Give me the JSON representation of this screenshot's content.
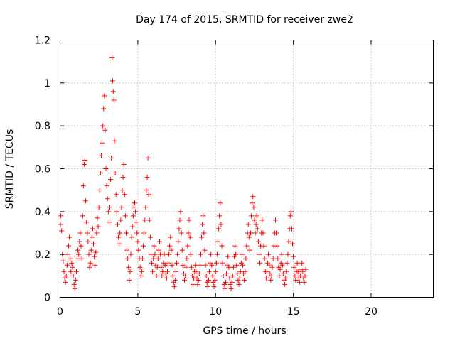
{
  "chart_data": {
    "type": "scatter",
    "title": "Day 174 of 2015, SRMTID for receiver zwe2",
    "xlabel": "GPS time / hours",
    "ylabel": "SRMTID / TECUs",
    "xlim": [
      0,
      24
    ],
    "ylim": [
      0,
      1.2
    ],
    "xticks": [
      "0",
      "5",
      "10",
      "15",
      "20"
    ],
    "yticks": [
      "0",
      "0.2",
      "0.4",
      "0.6",
      "0.8",
      "1",
      "1.2"
    ],
    "grid": true,
    "marker": "+",
    "series": [
      {
        "name": "SRMTID",
        "color": "#ff0000",
        "points": [
          [
            0.02,
            0.34
          ],
          [
            0.05,
            0.38
          ],
          [
            0.1,
            0.31
          ],
          [
            0.15,
            0.2
          ],
          [
            0.2,
            0.17
          ],
          [
            0.25,
            0.12
          ],
          [
            0.3,
            0.09
          ],
          [
            0.35,
            0.07
          ],
          [
            0.4,
            0.1
          ],
          [
            0.45,
            0.15
          ],
          [
            0.5,
            0.2
          ],
          [
            0.55,
            0.24
          ],
          [
            0.6,
            0.28
          ],
          [
            0.65,
            0.18
          ],
          [
            0.7,
            0.12
          ],
          [
            0.75,
            0.16
          ],
          [
            0.8,
            0.14
          ],
          [
            0.85,
            0.1
          ],
          [
            0.9,
            0.06
          ],
          [
            0.95,
            0.04
          ],
          [
            1.0,
            0.08
          ],
          [
            1.05,
            0.12
          ],
          [
            1.1,
            0.18
          ],
          [
            1.15,
            0.22
          ],
          [
            1.2,
            0.2
          ],
          [
            1.25,
            0.26
          ],
          [
            1.3,
            0.3
          ],
          [
            1.35,
            0.24
          ],
          [
            1.4,
            0.18
          ],
          [
            1.45,
            0.38
          ],
          [
            1.5,
            0.52
          ],
          [
            1.55,
            0.62
          ],
          [
            1.6,
            0.64
          ],
          [
            1.65,
            0.45
          ],
          [
            1.7,
            0.35
          ],
          [
            1.75,
            0.3
          ],
          [
            1.8,
            0.26
          ],
          [
            1.85,
            0.2
          ],
          [
            1.9,
            0.14
          ],
          [
            1.95,
            0.16
          ],
          [
            2.0,
            0.22
          ],
          [
            2.05,
            0.28
          ],
          [
            2.1,
            0.32
          ],
          [
            2.15,
            0.25
          ],
          [
            2.2,
            0.19
          ],
          [
            2.25,
            0.15
          ],
          [
            2.3,
            0.21
          ],
          [
            2.35,
            0.3
          ],
          [
            2.4,
            0.37
          ],
          [
            2.45,
            0.33
          ],
          [
            2.5,
            0.42
          ],
          [
            2.55,
            0.5
          ],
          [
            2.6,
            0.58
          ],
          [
            2.65,
            0.66
          ],
          [
            2.7,
            0.72
          ],
          [
            2.75,
            0.8
          ],
          [
            2.8,
            0.88
          ],
          [
            2.85,
            0.94
          ],
          [
            2.9,
            0.78
          ],
          [
            2.95,
            0.6
          ],
          [
            3.0,
            0.52
          ],
          [
            3.05,
            0.46
          ],
          [
            3.1,
            0.4
          ],
          [
            3.15,
            0.35
          ],
          [
            3.2,
            0.42
          ],
          [
            3.25,
            0.55
          ],
          [
            3.3,
            0.65
          ],
          [
            3.35,
            1.12
          ],
          [
            3.38,
            1.01
          ],
          [
            3.42,
            0.96
          ],
          [
            3.46,
            0.92
          ],
          [
            3.5,
            0.73
          ],
          [
            3.55,
            0.58
          ],
          [
            3.6,
            0.48
          ],
          [
            3.65,
            0.4
          ],
          [
            3.7,
            0.34
          ],
          [
            3.75,
            0.28
          ],
          [
            3.8,
            0.25
          ],
          [
            3.85,
            0.3
          ],
          [
            3.9,
            0.36
          ],
          [
            3.95,
            0.42
          ],
          [
            4.0,
            0.5
          ],
          [
            4.05,
            0.56
          ],
          [
            4.1,
            0.62
          ],
          [
            4.15,
            0.48
          ],
          [
            4.2,
            0.38
          ],
          [
            4.25,
            0.3
          ],
          [
            4.3,
            0.22
          ],
          [
            4.35,
            0.18
          ],
          [
            4.4,
            0.14
          ],
          [
            4.45,
            0.08
          ],
          [
            4.5,
            0.12
          ],
          [
            4.55,
            0.2
          ],
          [
            4.6,
            0.28
          ],
          [
            4.65,
            0.33
          ],
          [
            4.7,
            0.38
          ],
          [
            4.75,
            0.42
          ],
          [
            4.8,
            0.44
          ],
          [
            4.85,
            0.4
          ],
          [
            4.9,
            0.35
          ],
          [
            4.95,
            0.3
          ],
          [
            5.0,
            0.26
          ],
          [
            5.05,
            0.22
          ],
          [
            5.1,
            0.18
          ],
          [
            5.15,
            0.14
          ],
          [
            5.2,
            0.1
          ],
          [
            5.25,
            0.12
          ],
          [
            5.3,
            0.18
          ],
          [
            5.35,
            0.24
          ],
          [
            5.4,
            0.3
          ],
          [
            5.45,
            0.36
          ],
          [
            5.5,
            0.42
          ],
          [
            5.55,
            0.5
          ],
          [
            5.6,
            0.56
          ],
          [
            5.65,
            0.65
          ],
          [
            5.7,
            0.48
          ],
          [
            5.75,
            0.36
          ],
          [
            5.8,
            0.28
          ],
          [
            5.85,
            0.2
          ],
          [
            5.9,
            0.16
          ],
          [
            5.95,
            0.12
          ],
          [
            6.0,
            0.18
          ],
          [
            6.05,
            0.24
          ],
          [
            6.1,
            0.2
          ],
          [
            6.15,
            0.15
          ],
          [
            6.2,
            0.1
          ],
          [
            6.25,
            0.14
          ],
          [
            6.3,
            0.18
          ],
          [
            6.35,
            0.22
          ],
          [
            6.4,
            0.26
          ],
          [
            6.45,
            0.2
          ],
          [
            6.5,
            0.14
          ],
          [
            6.55,
            0.1
          ],
          [
            6.6,
            0.12
          ],
          [
            6.65,
            0.16
          ],
          [
            6.7,
            0.2
          ],
          [
            6.75,
            0.15
          ],
          [
            6.8,
            0.11
          ],
          [
            6.85,
            0.09
          ],
          [
            6.9,
            0.12
          ],
          [
            6.95,
            0.16
          ],
          [
            7.0,
            0.2
          ],
          [
            7.05,
            0.24
          ],
          [
            7.1,
            0.28
          ],
          [
            7.15,
            0.22
          ],
          [
            7.2,
            0.15
          ],
          [
            7.25,
            0.1
          ],
          [
            7.3,
            0.07
          ],
          [
            7.35,
            0.05
          ],
          [
            7.4,
            0.08
          ],
          [
            7.45,
            0.12
          ],
          [
            7.5,
            0.16
          ],
          [
            7.55,
            0.2
          ],
          [
            7.6,
            0.26
          ],
          [
            7.65,
            0.32
          ],
          [
            7.7,
            0.36
          ],
          [
            7.75,
            0.4
          ],
          [
            7.8,
            0.3
          ],
          [
            7.85,
            0.22
          ],
          [
            7.9,
            0.15
          ],
          [
            7.95,
            0.11
          ],
          [
            8.0,
            0.08
          ],
          [
            8.05,
            0.1
          ],
          [
            8.1,
            0.14
          ],
          [
            8.15,
            0.18
          ],
          [
            8.2,
            0.24
          ],
          [
            8.25,
            0.3
          ],
          [
            8.3,
            0.36
          ],
          [
            8.35,
            0.28
          ],
          [
            8.4,
            0.2
          ],
          [
            8.45,
            0.14
          ],
          [
            8.5,
            0.1
          ],
          [
            8.55,
            0.06
          ],
          [
            8.6,
            0.09
          ],
          [
            8.65,
            0.12
          ],
          [
            8.7,
            0.15
          ],
          [
            8.75,
            0.12
          ],
          [
            8.8,
            0.09
          ],
          [
            8.85,
            0.06
          ],
          [
            8.9,
            0.08
          ],
          [
            8.95,
            0.11
          ],
          [
            9.0,
            0.15
          ],
          [
            9.05,
            0.2
          ],
          [
            9.1,
            0.28
          ],
          [
            9.15,
            0.34
          ],
          [
            9.2,
            0.38
          ],
          [
            9.25,
            0.3
          ],
          [
            9.3,
            0.22
          ],
          [
            9.35,
            0.15
          ],
          [
            9.4,
            0.1
          ],
          [
            9.45,
            0.07
          ],
          [
            9.5,
            0.05
          ],
          [
            9.55,
            0.08
          ],
          [
            9.6,
            0.12
          ],
          [
            9.65,
            0.16
          ],
          [
            9.7,
            0.2
          ],
          [
            9.75,
            0.15
          ],
          [
            9.8,
            0.1
          ],
          [
            9.85,
            0.07
          ],
          [
            9.9,
            0.05
          ],
          [
            9.95,
            0.08
          ],
          [
            10.0,
            0.12
          ],
          [
            10.05,
            0.16
          ],
          [
            10.1,
            0.2
          ],
          [
            10.15,
            0.26
          ],
          [
            10.2,
            0.32
          ],
          [
            10.25,
            0.38
          ],
          [
            10.3,
            0.44
          ],
          [
            10.35,
            0.34
          ],
          [
            10.4,
            0.24
          ],
          [
            10.45,
            0.16
          ],
          [
            10.5,
            0.1
          ],
          [
            10.55,
            0.06
          ],
          [
            10.6,
            0.04
          ],
          [
            10.65,
            0.07
          ],
          [
            10.7,
            0.11
          ],
          [
            10.75,
            0.15
          ],
          [
            10.8,
            0.19
          ],
          [
            10.85,
            0.14
          ],
          [
            10.9,
            0.09
          ],
          [
            10.95,
            0.06
          ],
          [
            11.0,
            0.04
          ],
          [
            11.05,
            0.07
          ],
          [
            11.1,
            0.1
          ],
          [
            11.15,
            0.14
          ],
          [
            11.2,
            0.19
          ],
          [
            11.25,
            0.24
          ],
          [
            11.3,
            0.2
          ],
          [
            11.35,
            0.15
          ],
          [
            11.4,
            0.11
          ],
          [
            11.45,
            0.08
          ],
          [
            11.5,
            0.06
          ],
          [
            11.55,
            0.09
          ],
          [
            11.6,
            0.12
          ],
          [
            11.65,
            0.16
          ],
          [
            11.7,
            0.2
          ],
          [
            11.75,
            0.15
          ],
          [
            11.8,
            0.11
          ],
          [
            11.85,
            0.08
          ],
          [
            11.9,
            0.12
          ],
          [
            11.95,
            0.18
          ],
          [
            12.0,
            0.24
          ],
          [
            12.05,
            0.3
          ],
          [
            12.1,
            0.34
          ],
          [
            12.15,
            0.28
          ],
          [
            12.2,
            0.22
          ],
          [
            12.25,
            0.3
          ],
          [
            12.3,
            0.38
          ],
          [
            12.35,
            0.44
          ],
          [
            12.4,
            0.47
          ],
          [
            12.45,
            0.42
          ],
          [
            12.5,
            0.36
          ],
          [
            12.55,
            0.3
          ],
          [
            12.6,
            0.34
          ],
          [
            12.65,
            0.38
          ],
          [
            12.7,
            0.32
          ],
          [
            12.75,
            0.26
          ],
          [
            12.8,
            0.2
          ],
          [
            12.85,
            0.16
          ],
          [
            12.9,
            0.24
          ],
          [
            12.95,
            0.3
          ],
          [
            13.0,
            0.36
          ],
          [
            13.05,
            0.3
          ],
          [
            13.1,
            0.24
          ],
          [
            13.15,
            0.18
          ],
          [
            13.2,
            0.12
          ],
          [
            13.25,
            0.09
          ],
          [
            13.3,
            0.12
          ],
          [
            13.35,
            0.16
          ],
          [
            13.4,
            0.2
          ],
          [
            13.45,
            0.15
          ],
          [
            13.5,
            0.11
          ],
          [
            13.55,
            0.08
          ],
          [
            13.6,
            0.1
          ],
          [
            13.65,
            0.14
          ],
          [
            13.7,
            0.18
          ],
          [
            13.75,
            0.24
          ],
          [
            13.8,
            0.3
          ],
          [
            13.85,
            0.36
          ],
          [
            13.9,
            0.3
          ],
          [
            13.95,
            0.24
          ],
          [
            14.0,
            0.18
          ],
          [
            14.05,
            0.14
          ],
          [
            14.1,
            0.1
          ],
          [
            14.15,
            0.13
          ],
          [
            14.2,
            0.16
          ],
          [
            14.25,
            0.2
          ],
          [
            14.3,
            0.15
          ],
          [
            14.35,
            0.11
          ],
          [
            14.4,
            0.08
          ],
          [
            14.45,
            0.06
          ],
          [
            14.5,
            0.09
          ],
          [
            14.55,
            0.12
          ],
          [
            14.6,
            0.16
          ],
          [
            14.65,
            0.2
          ],
          [
            14.7,
            0.26
          ],
          [
            14.75,
            0.32
          ],
          [
            14.8,
            0.38
          ],
          [
            14.85,
            0.4
          ],
          [
            14.9,
            0.32
          ],
          [
            14.95,
            0.25
          ],
          [
            15.0,
            0.19
          ],
          [
            15.05,
            0.14
          ],
          [
            15.1,
            0.1
          ],
          [
            15.15,
            0.08
          ],
          [
            15.2,
            0.12
          ],
          [
            15.25,
            0.16
          ],
          [
            15.3,
            0.12
          ],
          [
            15.35,
            0.09
          ],
          [
            15.4,
            0.07
          ],
          [
            15.45,
            0.1
          ],
          [
            15.5,
            0.13
          ],
          [
            15.55,
            0.16
          ],
          [
            15.6,
            0.12
          ],
          [
            15.65,
            0.09
          ],
          [
            15.7,
            0.07
          ],
          [
            15.75,
            0.1
          ],
          [
            15.8,
            0.13
          ]
        ]
      }
    ]
  }
}
